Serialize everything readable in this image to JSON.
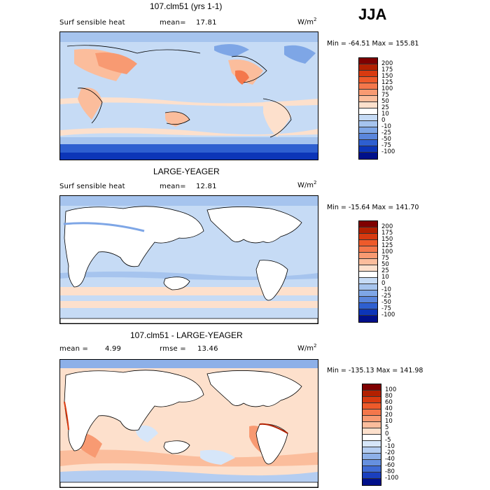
{
  "season": "JJA",
  "panels": [
    {
      "title": "107.clm51 (yrs 1-1)",
      "left_label": "Surf sensible heat",
      "stat_label": "mean=",
      "stat_value": "17.81",
      "units": "W/m",
      "units_exp": "2",
      "min_label": "Min =",
      "min_value": "-64.51",
      "max_label": "Max =",
      "max_value": "155.81",
      "levels": [
        "200",
        "175",
        "150",
        "125",
        "100",
        "75",
        "50",
        "25",
        "10",
        "0",
        "-10",
        "-25",
        "-50",
        "-75",
        "-100"
      ]
    },
    {
      "title": "LARGE-YEAGER",
      "left_label": "Surf sensible heat",
      "stat_label": "mean=",
      "stat_value": "12.81",
      "units": "W/m",
      "units_exp": "2",
      "min_label": "Min =",
      "min_value": "-15.64",
      "max_label": "Max =",
      "max_value": "141.70",
      "levels": [
        "200",
        "175",
        "150",
        "125",
        "100",
        "75",
        "50",
        "25",
        "10",
        "0",
        "-10",
        "-25",
        "-50",
        "-75",
        "-100"
      ]
    },
    {
      "title": "107.clm51 - LARGE-YEAGER",
      "left_label": "mean =",
      "left_value": "4.99",
      "stat_label": "rmse =",
      "stat_value": "13.46",
      "units": "W/m",
      "units_exp": "2",
      "min_label": "Min =",
      "min_value": "-135.13",
      "max_label": "Max =",
      "max_value": "141.98",
      "levels": [
        "100",
        "80",
        "60",
        "40",
        "20",
        "10",
        "5",
        "0",
        "-5",
        "-10",
        "-20",
        "-40",
        "-60",
        "-80",
        "-100"
      ]
    }
  ],
  "colors": {
    "abs_scale": [
      "#7f0000",
      "#b22000",
      "#d83a10",
      "#ee5a2a",
      "#f4774b",
      "#f89a72",
      "#fbbd9c",
      "#fde0cc",
      "#ffffff",
      "#c6dbf5",
      "#a6c4ee",
      "#7ea6e6",
      "#5a86dc",
      "#2e5fd0",
      "#0c35b8",
      "#00108a"
    ],
    "diff_scale": [
      "#7f0000",
      "#b22000",
      "#d83a10",
      "#ee5a2a",
      "#f4774b",
      "#f89a72",
      "#fbbd9c",
      "#fde0cc",
      "#ffffff",
      "#d6e6f9",
      "#b4cdf1",
      "#8db0e8",
      "#6690df",
      "#3f6ad4",
      "#1a3fbf",
      "#00108a"
    ]
  }
}
